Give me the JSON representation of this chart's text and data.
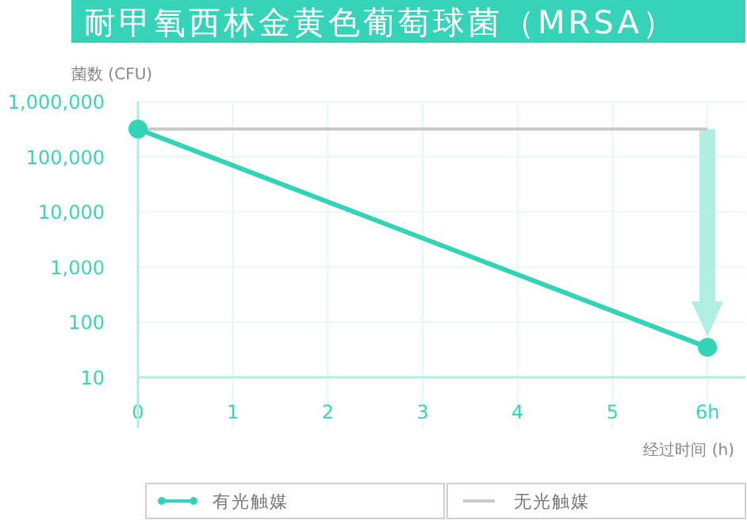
{
  "chart_data": {
    "type": "line",
    "title": "耐甲氧西林金黄色葡萄球菌（MRSA）",
    "ylabel": "菌数 (CFU)",
    "xlabel": "经过时间 (h)",
    "log": true,
    "grid": true,
    "legend": "bottom",
    "xlim": [
      0,
      6.4
    ],
    "xticks": [
      0,
      1,
      2,
      3,
      4,
      5,
      {
        "value": 6,
        "label": "6h"
      }
    ],
    "ylim": [
      10,
      1000000
    ],
    "yticks": [
      {
        "value": 10,
        "label": "10"
      },
      {
        "value": 100,
        "label": "100"
      },
      {
        "value": 1000,
        "label": "1,000"
      },
      {
        "value": 10000,
        "label": "10,000"
      },
      {
        "value": 100000,
        "label": "100,000"
      },
      {
        "value": 1000000,
        "label": "1,000,000"
      }
    ],
    "x": [
      0,
      6
    ],
    "series": [
      {
        "name": "有光触媒",
        "color": "#33d3b6",
        "marker": "circle",
        "values": [
          316000,
          35
        ]
      },
      {
        "name": "无光触媒",
        "color": "#c8c8c8",
        "marker": "none",
        "values": [
          316000,
          316000
        ]
      }
    ]
  }
}
